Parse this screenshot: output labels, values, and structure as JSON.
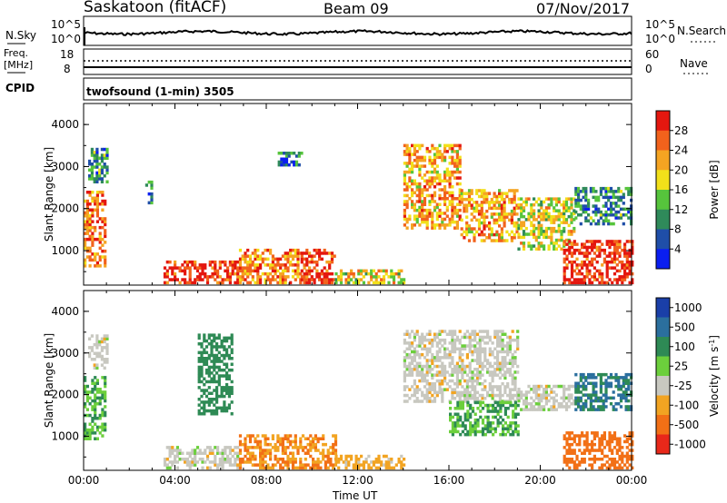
{
  "header": {
    "radar": "Saskatoon (fitACF)",
    "beam": "Beam 09",
    "date": "07/Nov/2017"
  },
  "top_panel": {
    "left_label": "N.Sky",
    "left_ticks": [
      "10^5",
      "10^0"
    ],
    "right_label": "N.Search",
    "right_ticks": [
      "10^5",
      "10^0"
    ]
  },
  "freq_panel": {
    "left_label_1": "Freq.",
    "left_label_2": "[MHz]",
    "left_ticks": [
      "18",
      "8"
    ],
    "right_label": "Nave",
    "right_ticks": [
      "60",
      "0"
    ]
  },
  "cpid": {
    "label": "CPID",
    "value": "twofsound (1-min) 3505"
  },
  "colors": {
    "power_scale": [
      "#0a1ef0",
      "#1f4ea8",
      "#2f8a5a",
      "#56c43c",
      "#f2e01a",
      "#f5a422",
      "#f2621c",
      "#e4170f"
    ],
    "velocity_scale": [
      "#1a3fa8",
      "#2b6f9e",
      "#2e8a55",
      "#6ccf3c",
      "#c8c8c0",
      "#f2a422",
      "#f27016",
      "#e8281a"
    ]
  },
  "chart_data": [
    {
      "type": "line",
      "title": "",
      "series": [
        {
          "name": "N.Sky",
          "x": [
            "00:00",
            "04:00",
            "08:00",
            "12:00",
            "16:00",
            "20:00",
            "00:00"
          ],
          "values": [
            250,
            200,
            150,
            200,
            250,
            150,
            300
          ]
        }
      ],
      "ylabel": "N.Sky",
      "ylim": [
        "10^0",
        "10^5"
      ]
    },
    {
      "type": "line",
      "series": [
        {
          "name": "Freq. [MHz]",
          "values": [
            10.5,
            10.5,
            10.5,
            10.5,
            10.5,
            10.5,
            10.5
          ]
        },
        {
          "name": "Nave",
          "values": [
            38,
            38,
            38,
            38,
            38,
            38,
            38
          ]
        }
      ],
      "ylim_left": [
        8,
        18
      ],
      "ylim_right": [
        0,
        60
      ]
    },
    {
      "type": "heatmap",
      "xlabel": "Time UT",
      "ylabel": "Slant Range [km]",
      "x_ticks": [
        "00:00",
        "04:00",
        "08:00",
        "12:00",
        "16:00",
        "20:00",
        "00:00"
      ],
      "y_ticks": [
        "1000",
        "2000",
        "3000",
        "4000"
      ],
      "ylim": [
        180,
        4500
      ],
      "colorbar_label": "Power [dB]",
      "colorbar_ticks": [
        "4",
        "8",
        "12",
        "16",
        "20",
        "24",
        "28"
      ],
      "colorbar_range": [
        0,
        32
      ],
      "patches": [
        {
          "t0": 0.0,
          "t1": 0.9,
          "r0": 600,
          "r1": 2400,
          "level": 26
        },
        {
          "t0": 0.2,
          "t1": 1.0,
          "r0": 2600,
          "r1": 3400,
          "level": 10
        },
        {
          "t0": 2.7,
          "t1": 3.0,
          "r0": 2100,
          "r1": 2600,
          "level": 8
        },
        {
          "t0": 3.5,
          "t1": 6.8,
          "r0": 200,
          "r1": 700,
          "level": 30
        },
        {
          "t0": 6.8,
          "t1": 9.5,
          "r0": 200,
          "r1": 1000,
          "level": 24
        },
        {
          "t0": 9.5,
          "t1": 11.0,
          "r0": 200,
          "r1": 1000,
          "level": 30
        },
        {
          "t0": 11.0,
          "t1": 14.0,
          "r0": 200,
          "r1": 500,
          "level": 18
        },
        {
          "t0": 14.0,
          "t1": 16.5,
          "r0": 1500,
          "r1": 3500,
          "level": 22
        },
        {
          "t0": 16.5,
          "t1": 19.0,
          "r0": 1200,
          "r1": 2400,
          "level": 22
        },
        {
          "t0": 19.0,
          "t1": 21.5,
          "r0": 1000,
          "r1": 2200,
          "level": 18
        },
        {
          "t0": 21.0,
          "t1": 24.0,
          "r0": 200,
          "r1": 1200,
          "level": 30
        },
        {
          "t0": 21.5,
          "t1": 24.0,
          "r0": 1600,
          "r1": 2500,
          "level": 10
        },
        {
          "t0": 8.5,
          "t1": 9.5,
          "r0": 3000,
          "r1": 3300,
          "level": 8
        }
      ]
    },
    {
      "type": "heatmap",
      "xlabel": "Time UT",
      "ylabel": "Slant Range [km]",
      "x_ticks": [
        "00:00",
        "04:00",
        "08:00",
        "12:00",
        "16:00",
        "20:00",
        "00:00"
      ],
      "y_ticks": [
        "1000",
        "2000",
        "3000",
        "4000"
      ],
      "ylim": [
        180,
        4500
      ],
      "colorbar_label": "Velocity [m s^-1]",
      "colorbar_ticks": [
        "1000",
        "500",
        "100",
        "25",
        "-25",
        "-100",
        "-500",
        "-1000"
      ],
      "patches": [
        {
          "t0": 0.0,
          "t1": 0.9,
          "r0": 900,
          "r1": 2400,
          "level": 100
        },
        {
          "t0": 0.2,
          "t1": 1.0,
          "r0": 2600,
          "r1": 3400,
          "level": 0
        },
        {
          "t0": 3.5,
          "t1": 6.8,
          "r0": 200,
          "r1": 700,
          "level": 0
        },
        {
          "t0": 6.8,
          "t1": 11.0,
          "r0": 200,
          "r1": 1000,
          "level": -100
        },
        {
          "t0": 11.0,
          "t1": 14.0,
          "r0": 200,
          "r1": 500,
          "level": -50
        },
        {
          "t0": 14.0,
          "t1": 19.0,
          "r0": 1800,
          "r1": 3500,
          "level": 0
        },
        {
          "t0": 16.0,
          "t1": 19.0,
          "r0": 1000,
          "r1": 1800,
          "level": 100
        },
        {
          "t0": 19.0,
          "t1": 21.5,
          "r0": 1600,
          "r1": 2200,
          "level": 0
        },
        {
          "t0": 21.0,
          "t1": 24.0,
          "r0": 200,
          "r1": 1100,
          "level": -300
        },
        {
          "t0": 21.5,
          "t1": 24.0,
          "r0": 1600,
          "r1": 2500,
          "level": 500
        },
        {
          "t0": 5.0,
          "t1": 6.5,
          "r0": 1500,
          "r1": 3400,
          "level": 300
        }
      ]
    }
  ]
}
